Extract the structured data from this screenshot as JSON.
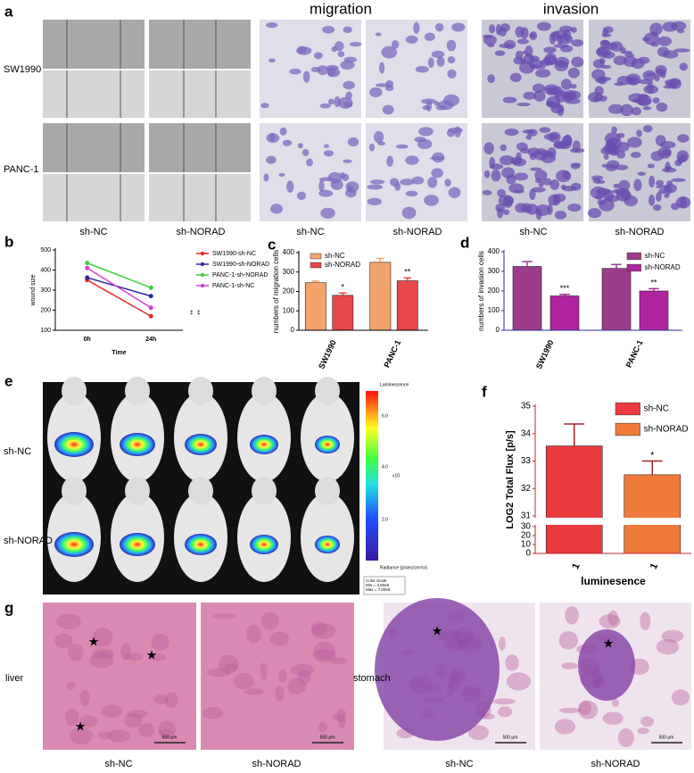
{
  "figure": {
    "panel_labels": [
      "a",
      "b",
      "c",
      "d",
      "e",
      "f",
      "g"
    ],
    "a": {
      "headers": [
        "migration",
        "invasion"
      ],
      "rows": [
        "SW1990",
        "PANC-1"
      ],
      "columns": [
        "sh-NC",
        "sh-NORAD",
        "sh-NC",
        "sh-NORAD",
        "sh-NC",
        "sh-NORAD"
      ]
    },
    "e": {
      "rows": [
        "sh-NC",
        "sh-NORAD"
      ],
      "colorbar_title": "Luminescence",
      "colorbar_ticks": [
        "6.0",
        "4.0",
        "2.0"
      ],
      "colorbar_unit": "x10",
      "colorbar_caption": "Radiance (p/sec/cm²/sr)",
      "color_scale": [
        "Color Scale",
        "Min = 4.00e5",
        "Max = 7.00e6"
      ]
    },
    "g": {
      "rows": [
        "liver",
        "stomach"
      ],
      "columns": [
        "sh-NC",
        "sh-NORAD",
        "sh-NC",
        "sh-NORAD"
      ],
      "scale_bar": "500 μm"
    }
  },
  "chart_data": [
    {
      "type": "line",
      "x_label": "Time",
      "y_label": "wound size",
      "categories": [
        "0h",
        "24h"
      ],
      "ylim": [
        100,
        500
      ],
      "yticks": [
        100,
        200,
        300,
        400,
        500
      ],
      "axis_color": "#000000",
      "annotations": [
        "**",
        "**"
      ],
      "series": [
        {
          "name": "SW1990-sh-NC",
          "color": "#e8252b",
          "values": [
            350,
            170
          ]
        },
        {
          "name": "SW1990-sh-NORAD",
          "color": "#2b2b9e",
          "values": [
            362,
            270
          ]
        },
        {
          "name": "PANC-1-sh-NORAD",
          "color": "#3cd13c",
          "values": [
            435,
            312
          ]
        },
        {
          "name": "PANC-1-sh-NC",
          "color": "#d43fd4",
          "values": [
            410,
            212
          ]
        }
      ]
    },
    {
      "type": "bar",
      "y_label": "numbers of migration cells",
      "categories": [
        "SW1990",
        "PANC-1"
      ],
      "ylim": [
        0,
        400
      ],
      "yticks": [
        0,
        100,
        200,
        300,
        400
      ],
      "axis_color": "#000000",
      "series": [
        {
          "name": "sh-NC",
          "color": "#f4a46a",
          "values": [
            245,
            350
          ],
          "errors": [
            8,
            20
          ]
        },
        {
          "name": "sh-NORAD",
          "color": "#e8474a",
          "values": [
            180,
            255
          ],
          "errors": [
            12,
            15
          ],
          "annotations": [
            "*",
            "**"
          ]
        }
      ]
    },
    {
      "type": "bar",
      "y_label": "numbers of invasion cells",
      "categories": [
        "SW1990",
        "PANC-1"
      ],
      "ylim": [
        0,
        400
      ],
      "yticks": [
        0,
        100,
        200,
        300,
        400
      ],
      "axis_color": "#2e2e9a",
      "series": [
        {
          "name": "sh-NC",
          "color": "#9b3d8a",
          "values": [
            325,
            315
          ],
          "errors": [
            25,
            20
          ]
        },
        {
          "name": "sh-NORAD",
          "color": "#b0259f",
          "values": [
            175,
            200
          ],
          "errors": [
            8,
            12
          ],
          "annotations": [
            "***",
            "**"
          ]
        }
      ]
    },
    {
      "type": "bar",
      "y_label": "LOG2 Total Flux [p/s]",
      "x_label": "luminesence",
      "categories": [
        "1",
        "1"
      ],
      "ylim": [
        0,
        35
      ],
      "yticks": [
        0,
        10,
        20,
        30,
        31,
        32,
        33,
        34,
        35
      ],
      "axis_break": [
        30,
        31
      ],
      "axis_color": "#c0282e",
      "series": [
        {
          "name": "sh-NC",
          "color": "#ea3a3e",
          "values": [
            33.55,
            null
          ],
          "errors": [
            0.8,
            null
          ]
        },
        {
          "name": "sh-NORAD",
          "color": "#f07a3a",
          "values": [
            null,
            32.5
          ],
          "errors": [
            null,
            0.5
          ],
          "annotations": [
            null,
            "*"
          ]
        }
      ]
    }
  ]
}
